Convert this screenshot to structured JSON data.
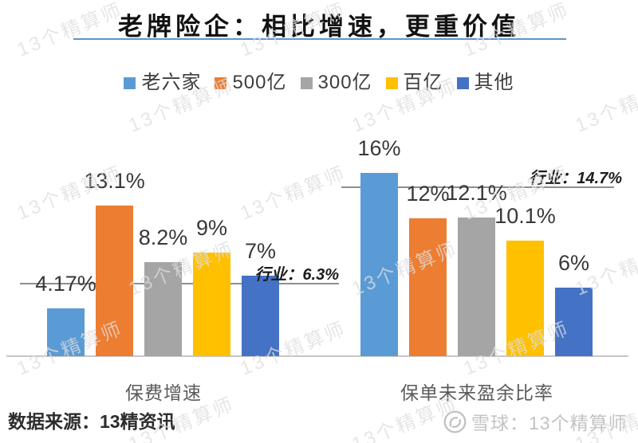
{
  "title": {
    "text": "老牌险企：相比增速，更重价值"
  },
  "chart_data": {
    "type": "bar",
    "title": "老牌险企：相比增速，更重价值",
    "unit": "%",
    "grid": false,
    "legend_position": "top",
    "ylim": [
      0,
      17.5
    ],
    "legend": [
      {
        "label": "老六家",
        "color": "#5B9BD5"
      },
      {
        "label": "500亿",
        "color": "#ED7D31"
      },
      {
        "label": "300亿",
        "color": "#A5A5A5"
      },
      {
        "label": "百亿",
        "color": "#FFC000"
      },
      {
        "label": "其他",
        "color": "#4472C4"
      }
    ],
    "groups": [
      {
        "category": "保费增速",
        "values": [
          4.17,
          13.1,
          8.2,
          9,
          7
        ],
        "value_labels": [
          "4.17%",
          "13.1%",
          "8.2%",
          "9%",
          "7%"
        ],
        "industry_line": {
          "label": "行业：6.3%",
          "value": 6.3
        }
      },
      {
        "category": "保单未来盈余比率",
        "values": [
          16,
          12,
          12.1,
          10.1,
          6
        ],
        "value_labels": [
          "16%",
          "12%",
          "12.1%",
          "10.1%",
          "6%"
        ],
        "industry_line": {
          "label": "行业：14.7%",
          "value": 14.7
        }
      }
    ]
  },
  "footer": {
    "source": "数据来源：13精资讯",
    "brand_text": "雪球：13个精算师"
  },
  "watermark": {
    "text": "13个精算师"
  },
  "colors": {
    "title_underline": "#5e93ce",
    "reference_line": "#8e8e8e",
    "axis_line": "#c6c6c6"
  }
}
